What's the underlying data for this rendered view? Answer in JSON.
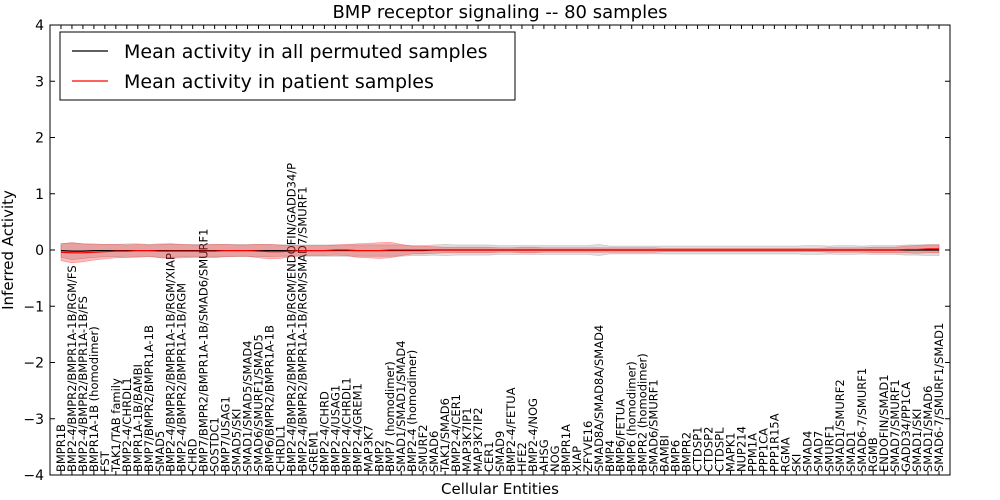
{
  "chart_data": {
    "type": "line",
    "title": "BMP receptor signaling -- 80 samples",
    "xlabel": "Cellular Entities",
    "ylabel": "Inferred Activity",
    "ylim": [
      -4,
      4
    ],
    "yticks": [
      -4,
      -3,
      -2,
      -1,
      0,
      1,
      2,
      3,
      4
    ],
    "ytick_labels": [
      "−4",
      "−3",
      "−2",
      "−1",
      "0",
      "1",
      "2",
      "3",
      "4"
    ],
    "legend_position": "top-left",
    "categories": [
      "BMPR1B",
      "BMP2-4/BMPR2/BMPR1A-1B/RGM/FS",
      "BMP2-4/BMPR2/BMPR1A-1B/FS",
      "BMPR1A-1B (homodimer)",
      "FST",
      "TAK1/TAB family",
      "BMP2-4/CHRDL1",
      "BMPR1A-1B/BAMBI",
      "BMP7/BMPR2/BMPR1A-1B",
      "SMAD5",
      "BMP2-4/BMPR2/BMPR1A-1B/RGM/XIAP",
      "BMP2-4/BMPR2/BMPR1A-1B/RGM",
      "CHRD",
      "BMP7/BMPR2/BMPR1A-1B/SMAD6/SMURF1",
      "SOSTDC1",
      "BMP7/USAG1",
      "SMAD5/SKI",
      "SMAD1/SMAD5/SMAD4",
      "SMAD6/SMURF1/SMAD5",
      "BMP6/BMPR2/BMPR1A-1B",
      "CHRDL1",
      "BMP2-4/BMPR2/BMPR1A-1B/RGM/ENDOFIN/GADD34/P",
      "BMP2-4/BMPR2/BMPR1A-1B/RGM/SMAD7/SMURF1",
      "GREM1",
      "BMP2-4/CHRD",
      "BMP2-4/USAG1",
      "BMP2-4/CHRDL1",
      "BMP2-4/GREM1",
      "MAP3K7",
      "BMP2",
      "BMP7 (homodimer)",
      "SMAD1/SMAD1/SMAD4",
      "BMP2-4 (homodimer)",
      "SMURF2",
      "SMAD6",
      "TAK1/SMAD6",
      "BMP2-4/CER1",
      "MAP3K7IP1",
      "MAP3K7IP2",
      "CER1",
      "SMAD9",
      "BMP2-4/FETUA",
      "HFE2",
      "BMP2-4/NOG",
      "AHSG",
      "NOG",
      "BMPR1A",
      "XIAP",
      "ZFYVE16",
      "SMAD8A/SMAD8A/SMAD4",
      "BMP4",
      "BMP6/FETUA",
      "BMP6 (homodimer)",
      "BMPR2 (homodimer)",
      "SMAD6/SMURF1",
      "BAMBI",
      "BMP6",
      "BMPR2",
      "CTDSP1",
      "CTDSP2",
      "CTDSPL",
      "MAPK1",
      "NUP214",
      "PPM1A",
      "PPP1CA",
      "PPP1R15A",
      "RGMA",
      "SKI",
      "SMAD4",
      "SMAD7",
      "SMURF1",
      "SMAD1/SMURF2",
      "SMAD1",
      "SMAD6-7/SMURF1",
      "RGMB",
      "ENDOFIN/SMAD1",
      "SMAD7/SMURF1",
      "GADD34/PP1CA",
      "SMAD1/SKI",
      "SMAD1/SMAD6",
      "SMAD6-7/SMURF1/SMAD1"
    ],
    "series": [
      {
        "name": "Mean activity in all permuted samples",
        "color": "#000000",
        "values": [
          -0.01,
          -0.02,
          -0.02,
          -0.01,
          -0.01,
          -0.01,
          -0.01,
          -0.01,
          -0.01,
          -0.01,
          -0.01,
          -0.01,
          -0.01,
          -0.01,
          -0.01,
          -0.01,
          -0.01,
          -0.01,
          -0.01,
          -0.01,
          -0.01,
          -0.01,
          -0.01,
          -0.01,
          -0.01,
          -0.01,
          -0.01,
          -0.01,
          -0.01,
          -0.01,
          -0.01,
          -0.01,
          -0.01,
          -0.01,
          0,
          0,
          0,
          0,
          0,
          0,
          0,
          0,
          0,
          0,
          0,
          0,
          0,
          0,
          0,
          0,
          0,
          0,
          0,
          0,
          0,
          0,
          0,
          0,
          0,
          0,
          0,
          0,
          0,
          0,
          0,
          0,
          0,
          0,
          0,
          0,
          0,
          0,
          0,
          0,
          0,
          0,
          0,
          0,
          0,
          0,
          0
        ],
        "band": [
          0.12,
          0.15,
          0.13,
          0.12,
          0.11,
          0.11,
          0.12,
          0.12,
          0.11,
          0.12,
          0.12,
          0.11,
          0.11,
          0.11,
          0.11,
          0.11,
          0.11,
          0.11,
          0.11,
          0.11,
          0.1,
          0.1,
          0.1,
          0.1,
          0.1,
          0.1,
          0.1,
          0.1,
          0.1,
          0.1,
          0.1,
          0.1,
          0.09,
          0.09,
          0.09,
          0.1,
          0.09,
          0.09,
          0.09,
          0.09,
          0.08,
          0.08,
          0.08,
          0.08,
          0.08,
          0.08,
          0.08,
          0.08,
          0.08,
          0.1,
          0.07,
          0.07,
          0.07,
          0.07,
          0.07,
          0.07,
          0.07,
          0.07,
          0.07,
          0.07,
          0.07,
          0.07,
          0.07,
          0.07,
          0.07,
          0.07,
          0.07,
          0.07,
          0.08,
          0.08,
          0.07,
          0.08,
          0.08,
          0.07,
          0.08,
          0.08,
          0.08,
          0.09,
          0.09,
          0.1,
          0.1
        ]
      },
      {
        "name": "Mean activity in patient samples",
        "color": "#ff0000",
        "values": [
          -0.04,
          -0.05,
          -0.05,
          -0.04,
          -0.03,
          -0.02,
          -0.02,
          -0.01,
          -0.01,
          -0.02,
          -0.02,
          -0.02,
          -0.02,
          -0.02,
          -0.02,
          -0.01,
          -0.01,
          -0.01,
          -0.02,
          -0.03,
          -0.03,
          -0.02,
          -0.01,
          -0.01,
          -0.01,
          0,
          0,
          -0.01,
          -0.01,
          -0.01,
          0,
          0,
          0,
          0,
          0,
          0,
          0,
          0,
          0,
          0,
          0,
          0,
          0,
          0,
          0,
          0,
          0,
          0,
          0,
          0,
          0,
          0,
          0,
          0,
          0,
          0,
          0,
          0,
          0,
          0,
          0,
          0,
          0,
          0,
          0,
          0,
          0,
          0,
          0,
          0,
          0,
          0,
          0,
          0,
          0,
          0,
          0,
          0.01,
          0.01,
          0.02,
          0.02
        ],
        "band": [
          0.15,
          0.18,
          0.16,
          0.14,
          0.13,
          0.12,
          0.11,
          0.11,
          0.1,
          0.12,
          0.13,
          0.12,
          0.11,
          0.11,
          0.12,
          0.11,
          0.1,
          0.1,
          0.12,
          0.13,
          0.12,
          0.1,
          0.09,
          0.09,
          0.09,
          0.09,
          0.1,
          0.12,
          0.13,
          0.14,
          0.14,
          0.1,
          0.07,
          0.07,
          0.06,
          0.05,
          0.05,
          0.05,
          0.05,
          0.05,
          0.04,
          0.04,
          0.05,
          0.05,
          0.04,
          0.04,
          0.04,
          0.04,
          0.04,
          0.04,
          0.04,
          0.04,
          0.04,
          0.04,
          0.04,
          0.03,
          0.03,
          0.03,
          0.03,
          0.03,
          0.03,
          0.03,
          0.03,
          0.03,
          0.03,
          0.03,
          0.03,
          0.03,
          0.03,
          0.03,
          0.04,
          0.04,
          0.04,
          0.04,
          0.05,
          0.05,
          0.05,
          0.06,
          0.07,
          0.07,
          0.07
        ]
      }
    ]
  }
}
